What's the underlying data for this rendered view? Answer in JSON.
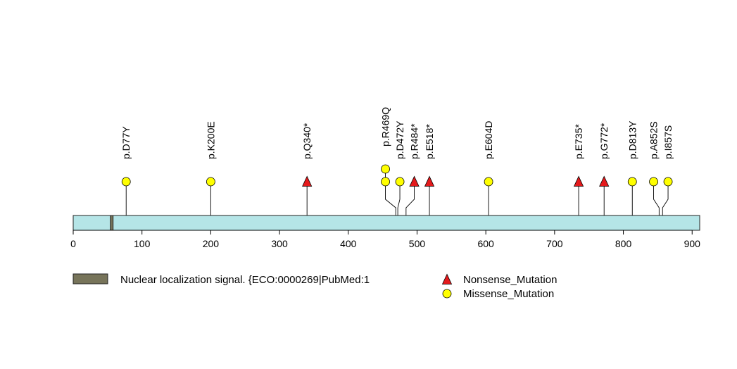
{
  "chart_data": {
    "type": "lollipop",
    "protein_length": 911,
    "axis": {
      "min": 0,
      "max": 911,
      "ticks": [
        0,
        100,
        200,
        300,
        400,
        500,
        600,
        700,
        800,
        900
      ]
    },
    "domains": [
      {
        "name": "Nuclear localization signal. {ECO:0000269|PubMed:1",
        "start": 54,
        "end": 58,
        "color": "#77745A"
      }
    ],
    "backbone_color": "#B5E5E7",
    "mutation_types": {
      "Nonsense_Mutation": {
        "shape": "triangle",
        "color": "#E41A1C"
      },
      "Missense_Mutation": {
        "shape": "circle",
        "color": "#FFFF00"
      }
    },
    "mutations": [
      {
        "label": "p.D77Y",
        "position": 77,
        "type": "Missense_Mutation",
        "count": 1
      },
      {
        "label": "p.K200E",
        "position": 200,
        "type": "Missense_Mutation",
        "count": 1
      },
      {
        "label": "p.Q340*",
        "position": 340,
        "type": "Nonsense_Mutation",
        "count": 1
      },
      {
        "label": "p.R469Q",
        "position": 469,
        "type": "Missense_Mutation",
        "count": 2
      },
      {
        "label": "p.D472Y",
        "position": 472,
        "type": "Missense_Mutation",
        "count": 1
      },
      {
        "label": "p.R484*",
        "position": 484,
        "type": "Nonsense_Mutation",
        "count": 1
      },
      {
        "label": "p.E518*",
        "position": 518,
        "type": "Nonsense_Mutation",
        "count": 1
      },
      {
        "label": "p.E604D",
        "position": 604,
        "type": "Missense_Mutation",
        "count": 1
      },
      {
        "label": "p.E735*",
        "position": 735,
        "type": "Nonsense_Mutation",
        "count": 1
      },
      {
        "label": "p.G772*",
        "position": 772,
        "type": "Nonsense_Mutation",
        "count": 1
      },
      {
        "label": "p.D813Y",
        "position": 813,
        "type": "Missense_Mutation",
        "count": 1
      },
      {
        "label": "p.A852S",
        "position": 852,
        "type": "Missense_Mutation",
        "count": 1
      },
      {
        "label": "p.I857S",
        "position": 857,
        "type": "Missense_Mutation",
        "count": 1
      }
    ],
    "legend": [
      {
        "label": "Nonsense_Mutation",
        "type": "Nonsense_Mutation"
      },
      {
        "label": "Missense_Mutation",
        "type": "Missense_Mutation"
      }
    ]
  }
}
